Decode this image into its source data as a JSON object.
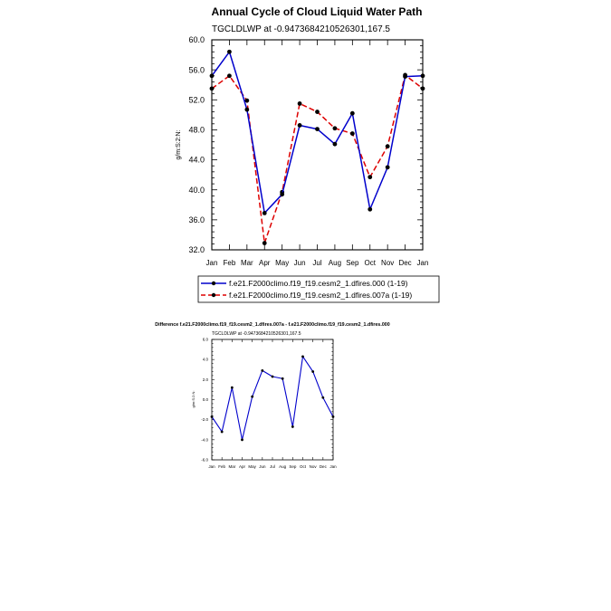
{
  "chart_data": [
    {
      "type": "line",
      "title": "Annual Cycle of Cloud Liquid Water Path",
      "subtitle": "TGCLDLWP at -0.9473684210526301,167.5",
      "xlabel": "",
      "ylabel": "g/m:S:2:N:",
      "categories": [
        "Jan",
        "Feb",
        "Mar",
        "Apr",
        "May",
        "Jun",
        "Jul",
        "Aug",
        "Sep",
        "Oct",
        "Nov",
        "Dec",
        "Jan"
      ],
      "ylim": [
        32.0,
        60.0
      ],
      "yticks": [
        "32.0",
        "36.0",
        "40.0",
        "44.0",
        "48.0",
        "52.0",
        "56.0",
        "60.0"
      ],
      "grid": false,
      "legend_position": "below",
      "series": [
        {
          "name": "f.e21.F2000climo.f19_f19.cesm2_1.dfires.000 (1-19)",
          "color": "#0000cc",
          "style": "solid",
          "values": [
            55.2,
            58.4,
            50.7,
            36.9,
            39.4,
            48.6,
            48.1,
            46.1,
            50.2,
            37.4,
            43.0,
            55.1,
            55.2
          ]
        },
        {
          "name": "f.e21.F2000climo.f19_f19.cesm2_1.dfires.007a (1-19)",
          "color": "#dd0000",
          "style": "dashed",
          "values": [
            53.5,
            55.2,
            51.9,
            32.9,
            39.7,
            51.5,
            50.4,
            48.2,
            47.5,
            41.7,
            45.8,
            55.3,
            53.5
          ]
        }
      ]
    },
    {
      "type": "line",
      "title": "Difference f.e21.F2000climo.f19_f19.cesm2_1.dfires.007a - f.e21.F2000climo.f19_f19.cesm2_1.dfires.000",
      "subtitle": "TGCLDLWP at -0.9473684210526301,167.5",
      "xlabel": "",
      "ylabel": "g/m:S:2:N:",
      "categories": [
        "Jan",
        "Feb",
        "Mar",
        "Apr",
        "May",
        "Jun",
        "Jul",
        "Aug",
        "Sep",
        "Oct",
        "Nov",
        "Dec",
        "Jan"
      ],
      "ylim": [
        -6.0,
        6.0
      ],
      "yticks": [
        "-6.0",
        "-4.0",
        "-2.0",
        "0.0",
        "2.0",
        "4.0",
        "6.0"
      ],
      "grid": false,
      "series": [
        {
          "name": "difference",
          "color": "#0000cc",
          "style": "solid",
          "values": [
            -1.7,
            -3.2,
            1.2,
            -4.0,
            0.3,
            2.9,
            2.3,
            2.1,
            -2.7,
            4.3,
            2.8,
            0.2,
            -1.7
          ]
        }
      ]
    }
  ]
}
